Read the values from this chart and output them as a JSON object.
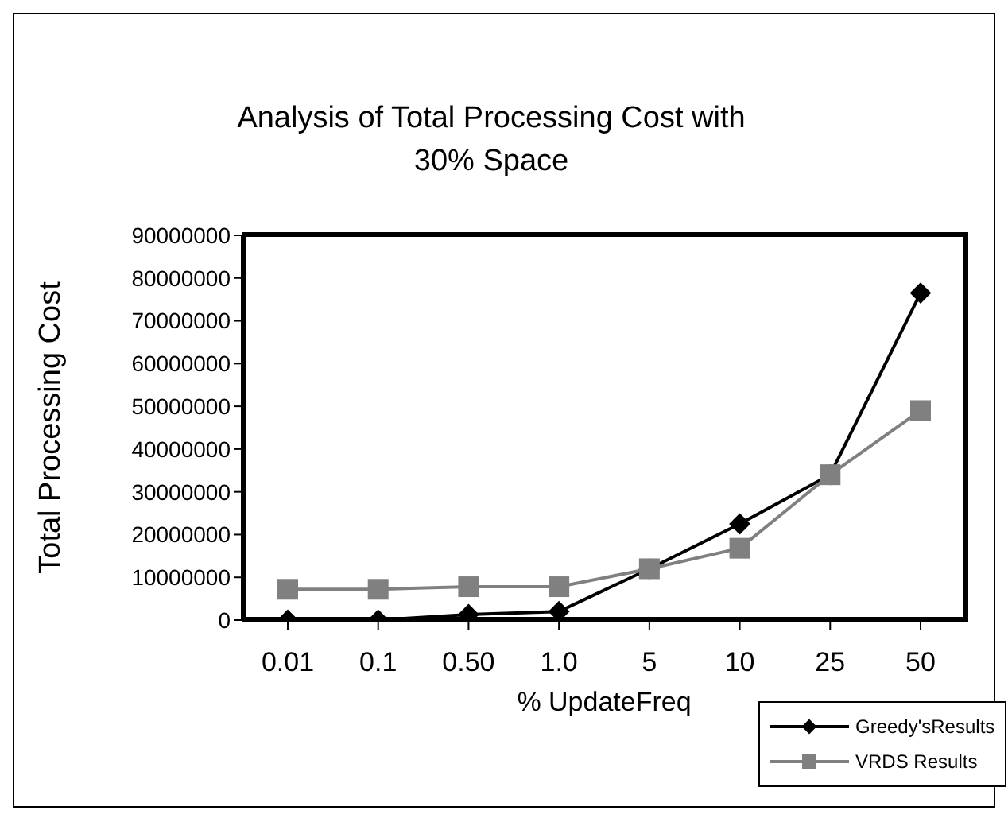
{
  "chart_data": {
    "type": "line",
    "title": "Analysis of Total Processing Cost with 30% Space",
    "xlabel": "% UpdateFreq",
    "ylabel": "Total Processing Cost",
    "categories": [
      "0.01",
      "0.1",
      "0.50",
      "1.0",
      "5",
      "10",
      "25",
      "50"
    ],
    "series": [
      {
        "name": "Greedy'sResults",
        "color": "#000000",
        "marker": "diamond",
        "values": [
          0,
          0,
          1300000,
          2000000,
          12000000,
          22500000,
          34000000,
          76500000
        ]
      },
      {
        "name": "VRDS Results",
        "color": "#808080",
        "marker": "square",
        "values": [
          7200000,
          7200000,
          7800000,
          7800000,
          12000000,
          16800000,
          34000000,
          49000000
        ]
      }
    ],
    "ylim": [
      0,
      90000000
    ],
    "yticks": [
      0,
      10000000,
      20000000,
      30000000,
      40000000,
      50000000,
      60000000,
      70000000,
      80000000,
      90000000
    ],
    "legend": "bottom right"
  }
}
